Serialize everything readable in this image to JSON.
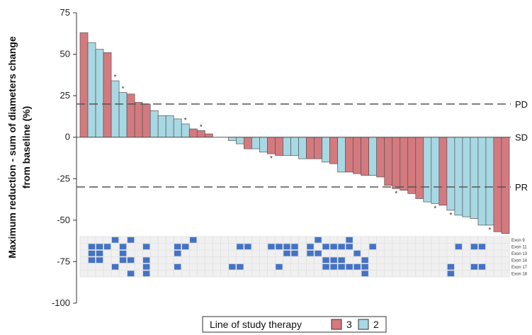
{
  "chart_data": {
    "type": "bar",
    "ylabel_lines": [
      "Maximum reduction - sum of diameters change",
      "from baseline (%)"
    ],
    "ylim": [
      -100,
      75
    ],
    "yticks": [
      75,
      50,
      25,
      0,
      -25,
      -50,
      -75,
      -100
    ],
    "reference_lines": [
      {
        "label": "PD",
        "value": 20
      },
      {
        "label": "SD",
        "value": 0
      },
      {
        "label": "PR",
        "value": -30
      }
    ],
    "legend": {
      "title": "Line of study therapy",
      "entries": [
        {
          "label": "3",
          "color": "#d47a7f"
        },
        {
          "label": "2",
          "color": "#a8d8e3"
        }
      ]
    },
    "series_colors": {
      "3": "#d47a7f",
      "2": "#a8d8e3"
    },
    "values": [
      63,
      57,
      53,
      51,
      34,
      27,
      26,
      21,
      20,
      16,
      13,
      13,
      11,
      8,
      5,
      4,
      2,
      0,
      0,
      -2,
      -4,
      -7,
      -7,
      -9,
      -10,
      -11,
      -11,
      -11,
      -13,
      -13,
      -13,
      -15,
      -16,
      -21,
      -21,
      -22,
      -23,
      -23,
      -24,
      -29,
      -31,
      -32,
      -34,
      -37,
      -39,
      -40,
      -41,
      -44,
      -47,
      -48,
      -49,
      -53,
      -53,
      -57,
      -58
    ],
    "lines": [
      "3",
      "2",
      "2",
      "3",
      "2",
      "2",
      "3",
      "3",
      "3",
      "2",
      "2",
      "2",
      "2",
      "2",
      "3",
      "3",
      "3",
      "2",
      "2",
      "2",
      "2",
      "3",
      "2",
      "2",
      "3",
      "3",
      "2",
      "2",
      "2",
      "3",
      "3",
      "2",
      "3",
      "2",
      "3",
      "3",
      "3",
      "2",
      "3",
      "3",
      "3",
      "3",
      "3",
      "3",
      "2",
      "2",
      "3",
      "2",
      "2",
      "2",
      "2",
      "2",
      "2",
      "3",
      "3"
    ],
    "stars_above": [
      4,
      5,
      13,
      15
    ],
    "stars_below": [
      24,
      40,
      45,
      47,
      52
    ],
    "mutation_rows": [
      "Exon 9",
      "Exon 11",
      "Exon 13",
      "Exon 14",
      "Exon 17",
      "Exon 18"
    ],
    "mutation_cells": [
      [
        4,
        0
      ],
      [
        6,
        0
      ],
      [
        14,
        0
      ],
      [
        30,
        0
      ],
      [
        34,
        0
      ],
      [
        1,
        1
      ],
      [
        2,
        1
      ],
      [
        3,
        1
      ],
      [
        5,
        1
      ],
      [
        8,
        1
      ],
      [
        12,
        1
      ],
      [
        13,
        1
      ],
      [
        20,
        1
      ],
      [
        21,
        1
      ],
      [
        24,
        1
      ],
      [
        25,
        1
      ],
      [
        26,
        1
      ],
      [
        27,
        1
      ],
      [
        29,
        1
      ],
      [
        31,
        1
      ],
      [
        32,
        1
      ],
      [
        33,
        1
      ],
      [
        34,
        1
      ],
      [
        37,
        1
      ],
      [
        48,
        1
      ],
      [
        50,
        1
      ],
      [
        51,
        1
      ],
      [
        1,
        2
      ],
      [
        2,
        2
      ],
      [
        5,
        2
      ],
      [
        12,
        2
      ],
      [
        26,
        2
      ],
      [
        27,
        2
      ],
      [
        29,
        2
      ],
      [
        30,
        2
      ],
      [
        35,
        2
      ],
      [
        1,
        3
      ],
      [
        2,
        3
      ],
      [
        5,
        3
      ],
      [
        6,
        3
      ],
      [
        8,
        3
      ],
      [
        31,
        3
      ],
      [
        32,
        3
      ],
      [
        33,
        3
      ],
      [
        36,
        3
      ],
      [
        4,
        4
      ],
      [
        8,
        4
      ],
      [
        12,
        4
      ],
      [
        19,
        4
      ],
      [
        20,
        4
      ],
      [
        25,
        4
      ],
      [
        31,
        4
      ],
      [
        32,
        4
      ],
      [
        33,
        4
      ],
      [
        34,
        4
      ],
      [
        35,
        4
      ],
      [
        36,
        4
      ],
      [
        47,
        4
      ],
      [
        50,
        4
      ],
      [
        51,
        4
      ],
      [
        6,
        5
      ],
      [
        8,
        5
      ],
      [
        36,
        5
      ],
      [
        47,
        5
      ]
    ],
    "grid_color": "#e0e0e0",
    "cell_color": "#4472c4"
  }
}
